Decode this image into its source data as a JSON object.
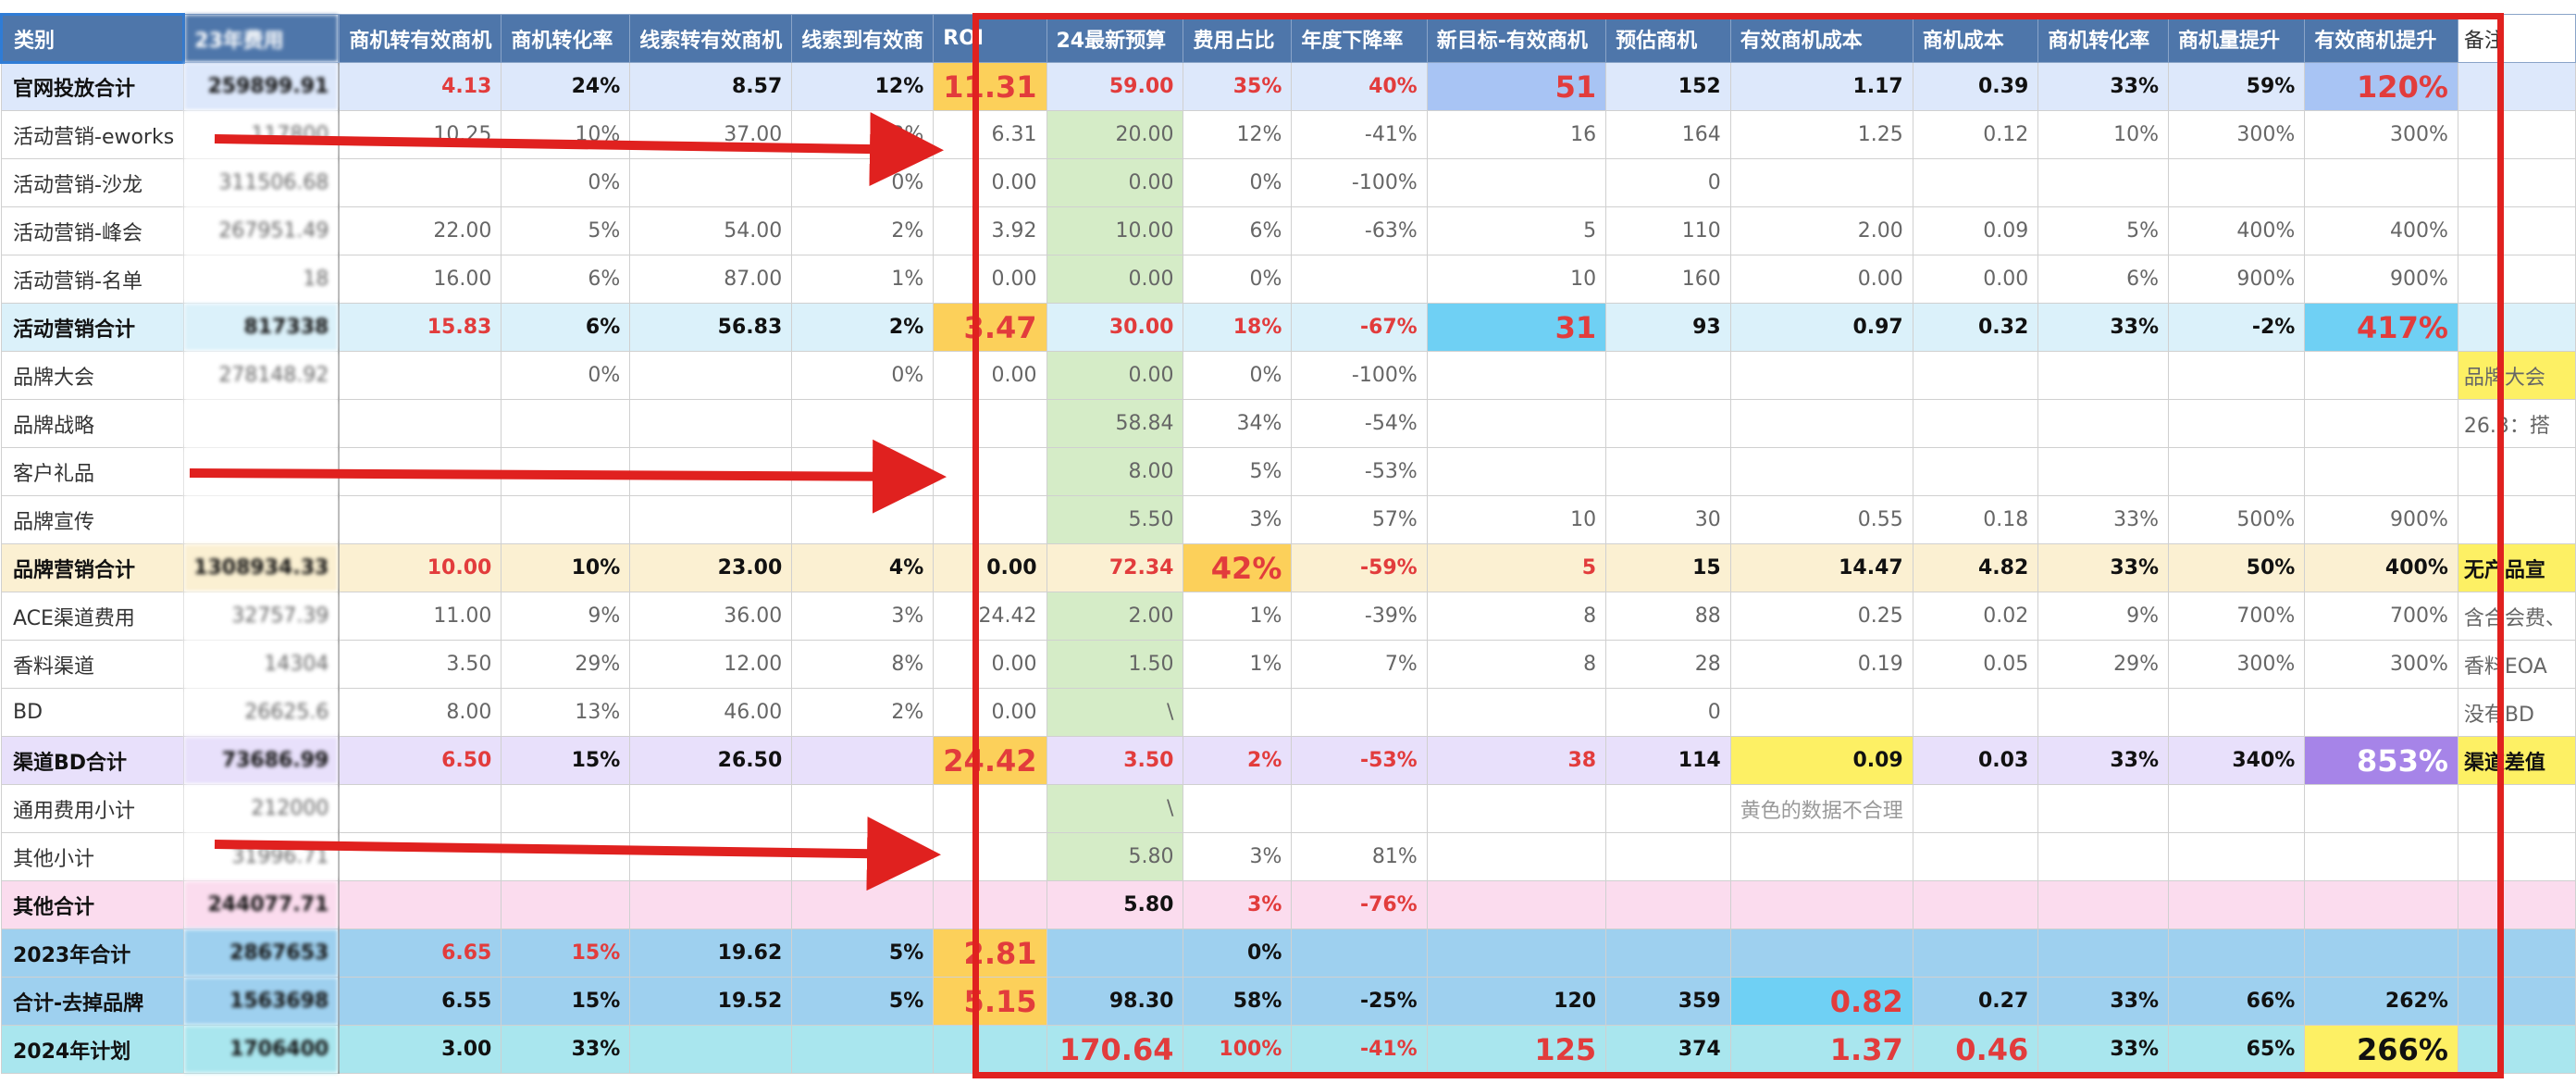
{
  "headers": [
    "类别",
    "23年费用",
    "商机转有效商机",
    "商机转化率",
    "线索转有效商机",
    "线索到有效商",
    "ROI",
    "24最新预算",
    "费用占比",
    "年度下降率",
    "新目标-有效商机",
    "预估商机",
    "有效商机成本",
    "商机成本",
    "商机转化率",
    "商机量提升",
    "有效商机提升",
    "备注"
  ],
  "rows": [
    {
      "type": "total",
      "bg": "#dde8fb",
      "cells": [
        "官网投放合计",
        "259899.91",
        "4.13",
        "24%",
        "8.57",
        "12%",
        "11.31",
        "59.00",
        "35%",
        "40%",
        "51",
        "152",
        "1.17",
        "0.39",
        "33%",
        "59%",
        "120%",
        ""
      ],
      "red": [
        2,
        6,
        7,
        8,
        9,
        10,
        16
      ],
      "big": [
        6,
        10,
        16
      ],
      "hl": {
        "6": "orange",
        "10": "blue",
        "16": "blue"
      }
    },
    {
      "type": "sub",
      "bg": "#ffffff",
      "cells": [
        "活动营销-eworks",
        "117800",
        "10.25",
        "10%",
        "37.00",
        "3%",
        "6.31",
        "20.00",
        "12%",
        "-41%",
        "16",
        "164",
        "1.25",
        "0.12",
        "10%",
        "300%",
        "300%",
        ""
      ]
    },
    {
      "type": "sub",
      "bg": "#ffffff",
      "cells": [
        "活动营销-沙龙",
        "311506.68",
        "",
        "0%",
        "",
        "0%",
        "0.00",
        "0.00",
        "0%",
        "-100%",
        "",
        "0",
        "",
        "",
        "",
        "",
        "",
        ""
      ]
    },
    {
      "type": "sub",
      "bg": "#ffffff",
      "cells": [
        "活动营销-峰会",
        "267951.49",
        "22.00",
        "5%",
        "54.00",
        "2%",
        "3.92",
        "10.00",
        "6%",
        "-63%",
        "5",
        "110",
        "2.00",
        "0.09",
        "5%",
        "400%",
        "400%",
        ""
      ]
    },
    {
      "type": "sub",
      "bg": "#ffffff",
      "cells": [
        "活动营销-名单",
        "18",
        "16.00",
        "6%",
        "87.00",
        "1%",
        "0.00",
        "0.00",
        "0%",
        "",
        "10",
        "160",
        "0.00",
        "0.00",
        "6%",
        "900%",
        "900%",
        ""
      ]
    },
    {
      "type": "total",
      "bg": "#dbf1fa",
      "cells": [
        "活动营销合计",
        "817338",
        "15.83",
        "6%",
        "56.83",
        "2%",
        "3.47",
        "30.00",
        "18%",
        "-67%",
        "31",
        "93",
        "0.97",
        "0.32",
        "33%",
        "-2%",
        "417%",
        ""
      ],
      "red": [
        2,
        6,
        7,
        8,
        9,
        10,
        16
      ],
      "big": [
        6,
        10,
        16
      ],
      "hl": {
        "6": "orange",
        "10": "sky",
        "16": "sky"
      }
    },
    {
      "type": "sub",
      "bg": "#ffffff",
      "cells": [
        "品牌大会",
        "278148.92",
        "",
        "0%",
        "",
        "0%",
        "0.00",
        "0.00",
        "0%",
        "-100%",
        "",
        "",
        "",
        "",
        "",
        "",
        "",
        "品牌大会"
      ],
      "tag": "yellow"
    },
    {
      "type": "sub",
      "bg": "#ffffff",
      "cells": [
        "品牌战略",
        "",
        "",
        "",
        "",
        "",
        "",
        "58.84",
        "34%",
        "-54%",
        "",
        "",
        "",
        "",
        "",
        "",
        "",
        "26.3：搭"
      ]
    },
    {
      "type": "sub",
      "bg": "#ffffff",
      "cells": [
        "客户礼品",
        "",
        "",
        "",
        "",
        "",
        "",
        "8.00",
        "5%",
        "-53%",
        "",
        "",
        "",
        "",
        "",
        "",
        "",
        ""
      ]
    },
    {
      "type": "sub",
      "bg": "#ffffff",
      "cells": [
        "品牌宣传",
        "",
        "",
        "",
        "",
        "",
        "",
        "5.50",
        "3%",
        "57%",
        "10",
        "30",
        "0.55",
        "0.18",
        "33%",
        "500%",
        "900%",
        ""
      ]
    },
    {
      "type": "total",
      "bg": "#fbf0d2",
      "cells": [
        "品牌营销合计",
        "1308934.33",
        "10.00",
        "10%",
        "23.00",
        "4%",
        "0.00",
        "72.34",
        "42%",
        "-59%",
        "5",
        "15",
        "14.47",
        "4.82",
        "33%",
        "50%",
        "400%",
        "无产品宣"
      ],
      "red": [
        2,
        7,
        8,
        9,
        10
      ],
      "big": [
        8
      ],
      "hl": {
        "8": "orange"
      },
      "tag": "yellow"
    },
    {
      "type": "sub",
      "bg": "#ffffff",
      "cells": [
        "ACE渠道费用",
        "32757.39",
        "11.00",
        "9%",
        "36.00",
        "3%",
        "24.42",
        "2.00",
        "1%",
        "-39%",
        "8",
        "88",
        "0.25",
        "0.02",
        "9%",
        "700%",
        "700%",
        "含合会费、"
      ]
    },
    {
      "type": "sub",
      "bg": "#ffffff",
      "cells": [
        "香料渠道",
        "14304",
        "3.50",
        "29%",
        "12.00",
        "8%",
        "0.00",
        "1.50",
        "1%",
        "7%",
        "8",
        "28",
        "0.19",
        "0.05",
        "29%",
        "300%",
        "300%",
        "香料EOA"
      ]
    },
    {
      "type": "sub",
      "bg": "#ffffff",
      "cells": [
        "BD",
        "26625.6",
        "8.00",
        "13%",
        "46.00",
        "2%",
        "0.00",
        "\\",
        "",
        "",
        "",
        "0",
        "",
        "",
        "",
        "",
        "",
        "没有BD"
      ]
    },
    {
      "type": "total",
      "bg": "#e8e0fb",
      "cells": [
        "渠道BD合计",
        "73686.99",
        "6.50",
        "15%",
        "26.50",
        "",
        "24.42",
        "3.50",
        "2%",
        "-53%",
        "38",
        "114",
        "0.09",
        "0.03",
        "33%",
        "340%",
        "853%",
        "渠道差值"
      ],
      "red": [
        2,
        6,
        7,
        8,
        9,
        10
      ],
      "big": [
        6,
        16
      ],
      "hl": {
        "6": "orange",
        "12": "yellow",
        "16": "purple"
      },
      "tag": "yellow"
    },
    {
      "type": "sub",
      "bg": "#ffffff",
      "cells": [
        "通用费用小计",
        "212000",
        "",
        "",
        "",
        "",
        "",
        "\\",
        "",
        "",
        "",
        "",
        "黄色的数据不合理",
        "",
        "",
        "",
        "",
        ""
      ],
      "note": 12
    },
    {
      "type": "sub",
      "bg": "#ffffff",
      "cells": [
        "其他小计",
        "31996.71",
        "",
        "",
        "",
        "",
        "",
        "5.80",
        "3%",
        "81%",
        "",
        "",
        "",
        "",
        "",
        "",
        "",
        ""
      ]
    },
    {
      "type": "total",
      "bg": "#fbdcee",
      "cells": [
        "其他合计",
        "244077.71",
        "",
        "",
        "",
        "",
        "",
        "5.80",
        "3%",
        "-76%",
        "",
        "",
        "",
        "",
        "",
        "",
        "",
        ""
      ],
      "red": [
        8,
        9
      ],
      "big": [],
      "hl": {}
    },
    {
      "type": "total",
      "bg": "#9ed0ef",
      "cells": [
        "2023年合计",
        "2867653",
        "6.65",
        "15%",
        "19.62",
        "5%",
        "2.81",
        "",
        "0%",
        "",
        "",
        "",
        "",
        "",
        "",
        "",
        "",
        ""
      ],
      "red": [
        2,
        3,
        6
      ],
      "big": [
        6
      ],
      "hl": {
        "6": "orange"
      }
    },
    {
      "type": "total",
      "bg": "#9ed0ef",
      "cells": [
        "合计-去掉品牌",
        "1563698",
        "6.55",
        "15%",
        "19.52",
        "5%",
        "5.15",
        "98.30",
        "58%",
        "-25%",
        "120",
        "359",
        "0.82",
        "0.27",
        "33%",
        "66%",
        "262%",
        ""
      ],
      "red": [
        6,
        12
      ],
      "big": [
        6,
        12
      ],
      "hl": {
        "6": "orange",
        "12": "sky"
      }
    },
    {
      "type": "total",
      "bg": "#a9e6ee",
      "cells": [
        "2024年计划",
        "1706400",
        "3.00",
        "33%",
        "",
        "",
        "",
        "170.64",
        "100%",
        "-41%",
        "125",
        "374",
        "1.37",
        "0.46",
        "33%",
        "65%",
        "266%",
        ""
      ],
      "red": [
        7,
        8,
        9,
        10,
        12,
        13
      ],
      "big": [
        7,
        10,
        12,
        13,
        16
      ],
      "hl": {
        "16": "yellow"
      }
    }
  ],
  "colors": {
    "header_bg": "#4e76aa",
    "accent_red": "#e0211f",
    "budget_green": "#d5ecc7"
  },
  "overlays": {
    "red_box": "highlight",
    "arrows": [
      "red-arrow",
      "red-arrow",
      "red-arrow"
    ]
  }
}
